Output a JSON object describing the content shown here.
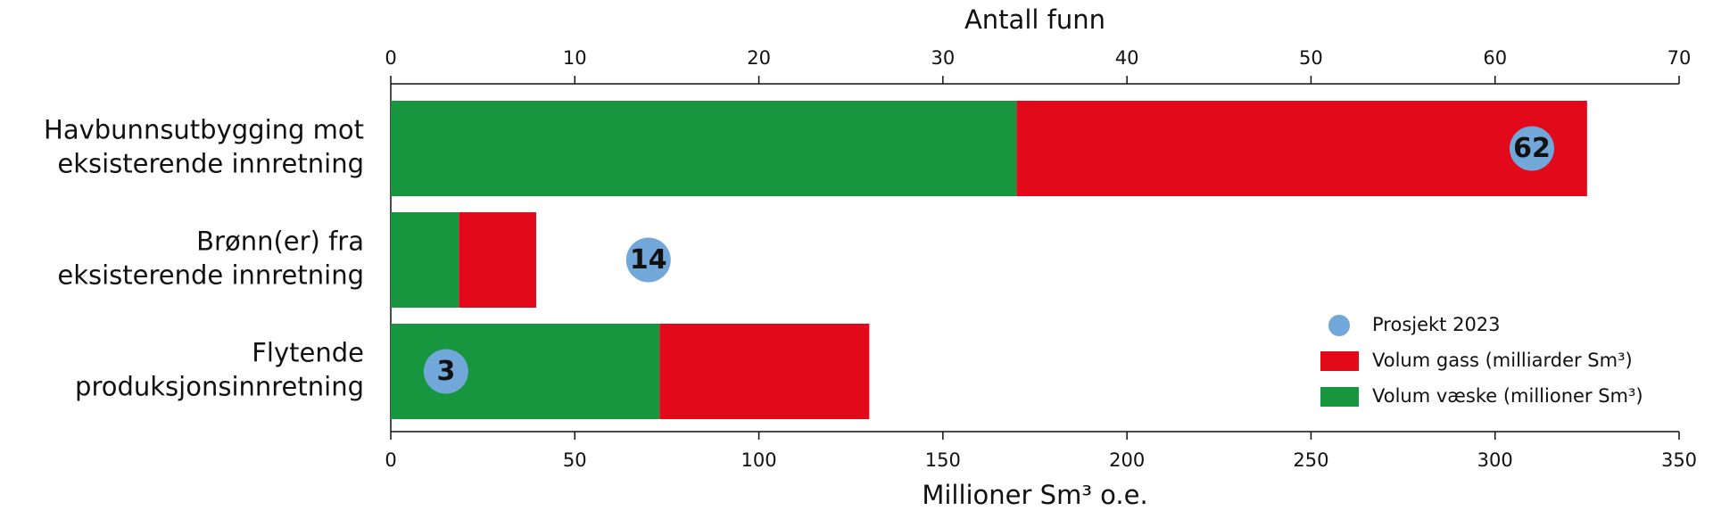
{
  "chart_data": {
    "type": "stacked_barh",
    "x_label": "Millioner Sm³ o.e.",
    "x2_label": "Antall funn",
    "categories": [
      "Havbunnsutbygging mot\neksisterende innretning",
      "Brønn(er) fra\neksisterende innretning",
      "Flytende\nproduksjonsinnretning"
    ],
    "series": [
      {
        "name": "Volum væske (millioner Sm³)",
        "color": "#17963f",
        "values": [
          170,
          18.5,
          73
        ]
      },
      {
        "name": "Volum gass (milliarder Sm³)",
        "color": "#e20a1a",
        "values": [
          155,
          21,
          57
        ]
      },
      {
        "name": "Prosjekt 2023",
        "color": "#72a7d9",
        "axis": "x2",
        "values": [
          62,
          14,
          3
        ]
      }
    ],
    "xlim": [
      0,
      350
    ],
    "xticks": [
      0,
      50,
      100,
      150,
      200,
      250,
      300,
      350
    ],
    "x2lim": [
      0,
      70
    ],
    "x2ticks": [
      0,
      10,
      20,
      30,
      40,
      50,
      60,
      70
    ],
    "legend": "lower right"
  }
}
